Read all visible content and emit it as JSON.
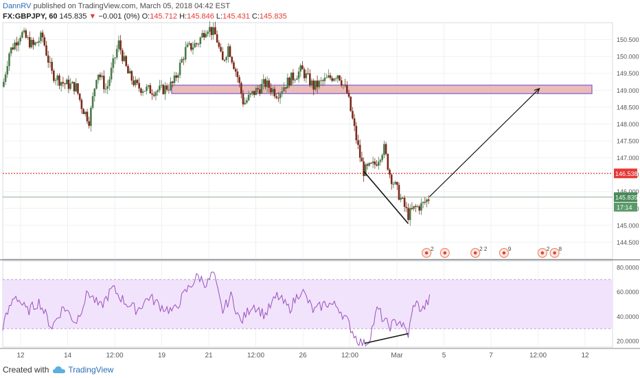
{
  "header": {
    "author": "DannRV",
    "published": "published on TradingView.com, March 05, 2018 04:42 EST"
  },
  "quote": {
    "symbol": "FX:GBPJPY, 60",
    "last": "145.835",
    "change": "−0.001 (0%)",
    "o_label": "O:",
    "o": "145.712",
    "h_label": "H:",
    "h": "145.846",
    "l_label": "L:",
    "l": "145.431",
    "c_label": "C:",
    "c": "145.835"
  },
  "footer": {
    "created_with": "Created with",
    "brand": "TradingView"
  },
  "colors": {
    "up": "#4a7a4a",
    "down": "#7a2a1a",
    "zone_fill": "#e8b0ab",
    "zone_border": "#7b5cd6",
    "rsi_line": "#9a4fbf",
    "rsi_band": "#f1e3fb",
    "hline": "#e53935",
    "grid": "#eef0f3"
  },
  "chart_data": [
    {
      "type": "candlestick",
      "title": "FX:GBPJPY, 60",
      "ylim": [
        144.0,
        151.0
      ],
      "y_ticks": [
        "144.500",
        "145.000",
        "145.500",
        "146.000",
        "146.500",
        "147.000",
        "147.500",
        "148.000",
        "148.500",
        "149.000",
        "149.500",
        "150.000",
        "150.500"
      ],
      "x_ticks": [
        "12",
        "14",
        "12:00",
        "19",
        "21",
        "12:00",
        "26",
        "12:00",
        "Mar",
        "5",
        "7",
        "12:00",
        "12"
      ],
      "resistance_zone": [
        148.9,
        149.15
      ],
      "horizontal_line": {
        "value": 146.538,
        "label": "146.538"
      },
      "last_price_label": "145.835",
      "countdown_label": "17:14",
      "events": [
        {
          "x": 0.695,
          "count": "2"
        },
        {
          "x": 0.725,
          "count": ""
        },
        {
          "x": 0.775,
          "count": "2 2"
        },
        {
          "x": 0.822,
          "count": "9"
        },
        {
          "x": 0.885,
          "count": "2"
        },
        {
          "x": 0.905,
          "count": "8"
        }
      ],
      "drawn_lines": [
        {
          "from": [
            0.592,
            146.6
          ],
          "to": [
            0.665,
            145.05
          ]
        },
        {
          "from": [
            0.7,
            145.85
          ],
          "to": [
            0.88,
            149.05
          ]
        }
      ],
      "anchors": [
        {
          "x": 0.0,
          "y": 149.1
        },
        {
          "x": 0.01,
          "y": 150.1
        },
        {
          "x": 0.03,
          "y": 150.7
        },
        {
          "x": 0.05,
          "y": 150.3
        },
        {
          "x": 0.065,
          "y": 150.6
        },
        {
          "x": 0.08,
          "y": 149.5
        },
        {
          "x": 0.1,
          "y": 149.2
        },
        {
          "x": 0.12,
          "y": 149.1
        },
        {
          "x": 0.13,
          "y": 148.5
        },
        {
          "x": 0.142,
          "y": 148.1
        },
        {
          "x": 0.155,
          "y": 149.6
        },
        {
          "x": 0.17,
          "y": 149.0
        },
        {
          "x": 0.19,
          "y": 150.4
        },
        {
          "x": 0.205,
          "y": 149.5
        },
        {
          "x": 0.22,
          "y": 149.1
        },
        {
          "x": 0.24,
          "y": 149.0
        },
        {
          "x": 0.26,
          "y": 149.0
        },
        {
          "x": 0.28,
          "y": 149.2
        },
        {
          "x": 0.3,
          "y": 150.2
        },
        {
          "x": 0.32,
          "y": 150.4
        },
        {
          "x": 0.335,
          "y": 150.9
        },
        {
          "x": 0.35,
          "y": 150.6
        },
        {
          "x": 0.36,
          "y": 149.8
        },
        {
          "x": 0.37,
          "y": 150.3
        },
        {
          "x": 0.385,
          "y": 149.4
        },
        {
          "x": 0.395,
          "y": 148.6
        },
        {
          "x": 0.41,
          "y": 148.9
        },
        {
          "x": 0.43,
          "y": 149.2
        },
        {
          "x": 0.45,
          "y": 148.9
        },
        {
          "x": 0.47,
          "y": 149.3
        },
        {
          "x": 0.49,
          "y": 149.6
        },
        {
          "x": 0.51,
          "y": 149.1
        },
        {
          "x": 0.53,
          "y": 149.3
        },
        {
          "x": 0.55,
          "y": 149.5
        },
        {
          "x": 0.565,
          "y": 148.9
        },
        {
          "x": 0.575,
          "y": 148.0
        },
        {
          "x": 0.585,
          "y": 147.1
        },
        {
          "x": 0.592,
          "y": 146.6
        },
        {
          "x": 0.61,
          "y": 146.8
        },
        {
          "x": 0.625,
          "y": 147.3
        },
        {
          "x": 0.635,
          "y": 146.5
        },
        {
          "x": 0.65,
          "y": 145.9
        },
        {
          "x": 0.665,
          "y": 145.3
        },
        {
          "x": 0.675,
          "y": 145.5
        },
        {
          "x": 0.688,
          "y": 145.6
        },
        {
          "x": 0.7,
          "y": 145.83
        }
      ]
    },
    {
      "type": "line",
      "title": "RSI",
      "ylim": [
        15,
        85
      ],
      "y_ticks": [
        "20.0000",
        "40.0000",
        "60.0000",
        "80.0000"
      ],
      "band": [
        30,
        70
      ],
      "anchors": [
        {
          "x": 0.0,
          "y": 32
        },
        {
          "x": 0.02,
          "y": 58
        },
        {
          "x": 0.04,
          "y": 44
        },
        {
          "x": 0.06,
          "y": 52
        },
        {
          "x": 0.08,
          "y": 31
        },
        {
          "x": 0.1,
          "y": 48
        },
        {
          "x": 0.12,
          "y": 35
        },
        {
          "x": 0.14,
          "y": 60
        },
        {
          "x": 0.16,
          "y": 47
        },
        {
          "x": 0.18,
          "y": 63
        },
        {
          "x": 0.2,
          "y": 52
        },
        {
          "x": 0.22,
          "y": 45
        },
        {
          "x": 0.24,
          "y": 56
        },
        {
          "x": 0.26,
          "y": 48
        },
        {
          "x": 0.28,
          "y": 44
        },
        {
          "x": 0.3,
          "y": 60
        },
        {
          "x": 0.32,
          "y": 73
        },
        {
          "x": 0.335,
          "y": 66
        },
        {
          "x": 0.345,
          "y": 76
        },
        {
          "x": 0.36,
          "y": 44
        },
        {
          "x": 0.375,
          "y": 57
        },
        {
          "x": 0.39,
          "y": 35
        },
        {
          "x": 0.41,
          "y": 50
        },
        {
          "x": 0.43,
          "y": 41
        },
        {
          "x": 0.45,
          "y": 57
        },
        {
          "x": 0.47,
          "y": 46
        },
        {
          "x": 0.49,
          "y": 62
        },
        {
          "x": 0.51,
          "y": 44
        },
        {
          "x": 0.53,
          "y": 51
        },
        {
          "x": 0.55,
          "y": 48
        },
        {
          "x": 0.565,
          "y": 36
        },
        {
          "x": 0.58,
          "y": 22
        },
        {
          "x": 0.592,
          "y": 17
        },
        {
          "x": 0.6,
          "y": 20
        },
        {
          "x": 0.615,
          "y": 47
        },
        {
          "x": 0.625,
          "y": 36
        },
        {
          "x": 0.635,
          "y": 32
        },
        {
          "x": 0.65,
          "y": 37
        },
        {
          "x": 0.665,
          "y": 25
        },
        {
          "x": 0.675,
          "y": 52
        },
        {
          "x": 0.688,
          "y": 45
        },
        {
          "x": 0.7,
          "y": 54
        }
      ],
      "divergence_line": {
        "from": [
          0.593,
          18
        ],
        "to": [
          0.665,
          26
        ]
      }
    }
  ]
}
